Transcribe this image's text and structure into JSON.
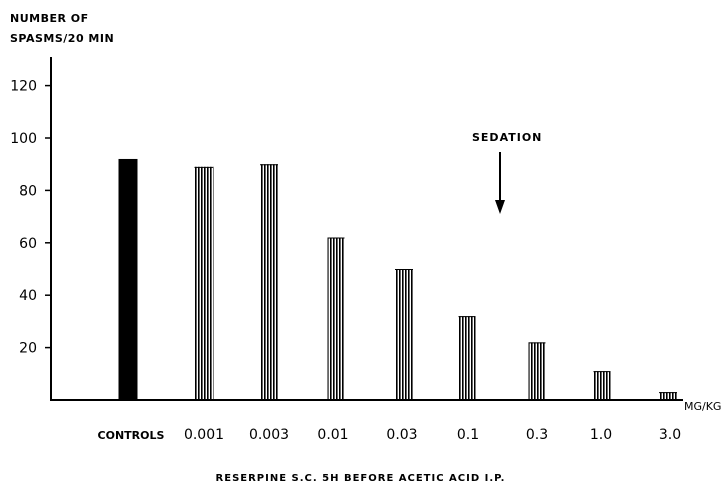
{
  "chart_data": {
    "type": "bar",
    "ylabel_lines": [
      "NUMBER OF",
      "SPASMS/20 MIN"
    ],
    "xlabel": "RESERPINE S.C. 5H BEFORE ACETIC ACID I.P.",
    "x_unit": "MG/KG",
    "ylim": [
      0,
      130
    ],
    "yticks": [
      20,
      40,
      60,
      80,
      100,
      120
    ],
    "categories": [
      "CONTROLS",
      "0.001",
      "0.003",
      "0.01",
      "0.03",
      "0.1",
      "0.3",
      "1.0",
      "3.0"
    ],
    "values": [
      92,
      89,
      90,
      62,
      50,
      32,
      22,
      11,
      3
    ],
    "annotation": {
      "text": "SEDATION",
      "position": "arrow pointing down between 0.1 and 0.3"
    },
    "colors": {
      "bar": "#000000",
      "background": "#ffffff"
    }
  }
}
